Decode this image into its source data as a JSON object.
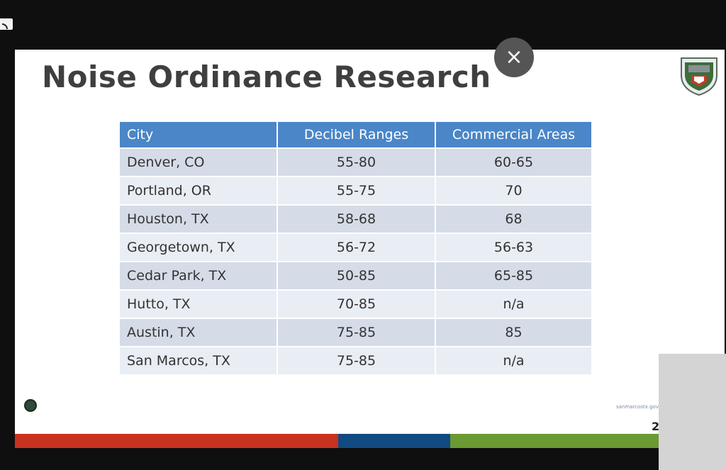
{
  "slide": {
    "title": "Noise Ordinance Research",
    "table": {
      "headers": [
        "City",
        "Decibel Ranges",
        "Commercial Areas"
      ],
      "rows": [
        [
          "Denver, CO",
          "55-80",
          "60-65"
        ],
        [
          "Portland, OR",
          "55-75",
          "70"
        ],
        [
          "Houston, TX",
          "58-68",
          "68"
        ],
        [
          "Georgetown, TX",
          "56-72",
          "56-63"
        ],
        [
          "Cedar Park, TX",
          "50-85",
          "65-85"
        ],
        [
          "Hutto, TX",
          "70-85",
          "n/a"
        ],
        [
          "Austin, TX",
          "75-85",
          "85"
        ],
        [
          "San Marcos, TX",
          "75-85",
          "n/a"
        ]
      ]
    },
    "footer_text": "sanmarcostx.gov",
    "page_number": "2",
    "bar_colors": [
      "#c8321e",
      "#124a82",
      "#6a9a32"
    ]
  },
  "overlay": {
    "close_symbol": "×",
    "close_icon": "close-icon",
    "cast_icon": "cast-icon",
    "logo_icon": "city-seal-icon"
  }
}
